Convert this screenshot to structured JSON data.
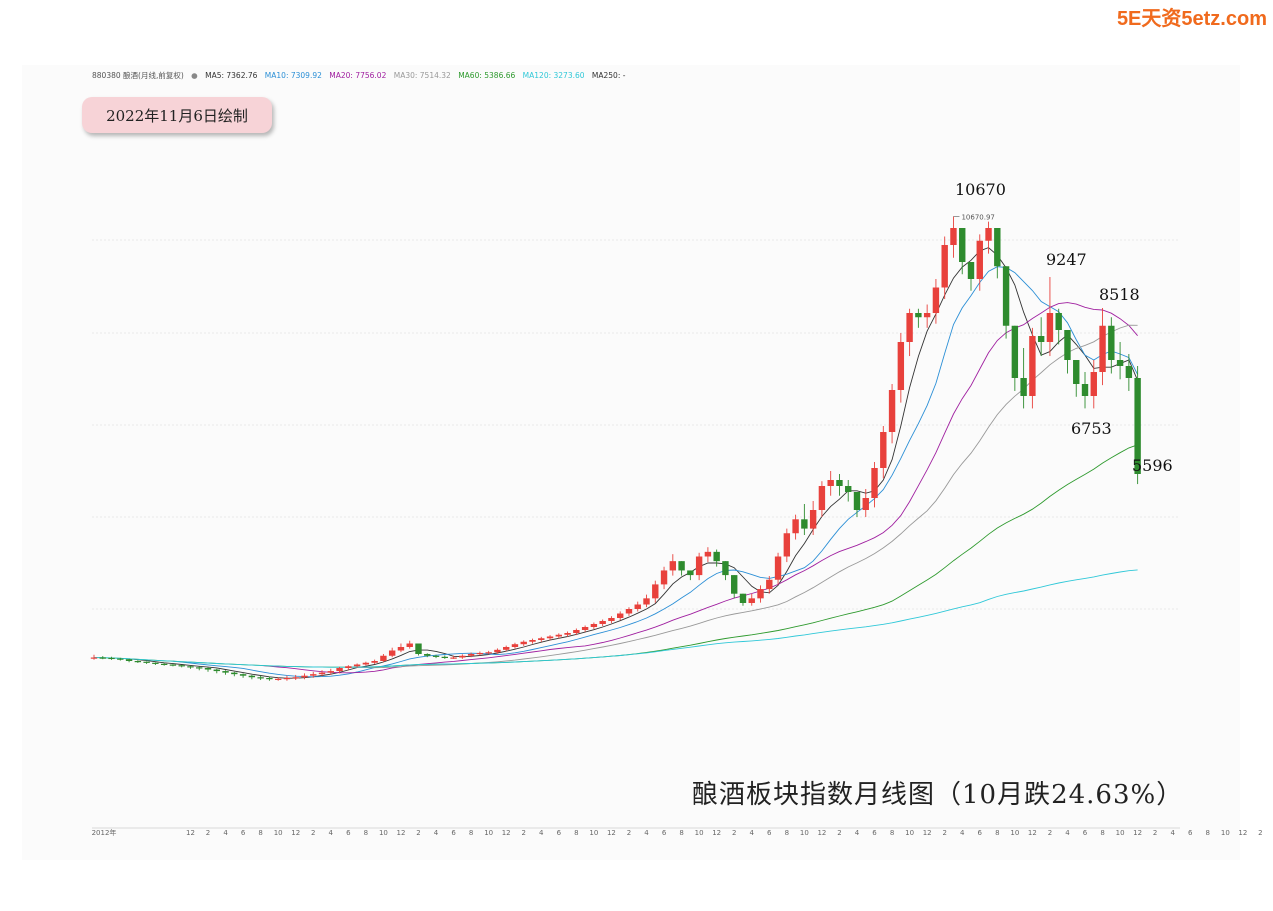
{
  "watermark": "5E天资5etz.com",
  "legend": {
    "symbol": "880380 酿酒(月线,前复权)",
    "items": [
      {
        "label": "MA5: 7362.76",
        "color": "#333333"
      },
      {
        "label": "MA10: 7309.92",
        "color": "#2b8fd6"
      },
      {
        "label": "MA20: 7756.02",
        "color": "#a020a0"
      },
      {
        "label": "MA30: 7514.32",
        "color": "#999999"
      },
      {
        "label": "MA60: 5386.66",
        "color": "#2e9a2e"
      },
      {
        "label": "MA120: 3273.60",
        "color": "#30c8d8"
      },
      {
        "label": "MA250: -",
        "color": "#333333"
      }
    ]
  },
  "date_badge": "2022年11月6日绘制",
  "chart_data": {
    "type": "candlestick",
    "title": "酿酒板块指数月线图（10月跌24.63%）",
    "frequency": "monthly",
    "start": "2012-01",
    "ylim": [
      0,
      12000
    ],
    "grid": true,
    "colors": {
      "up": "#e8413c",
      "down": "#2e8b2e"
    },
    "closes": [
      1300,
      1290,
      1270,
      1250,
      1200,
      1180,
      1150,
      1120,
      1100,
      1080,
      1050,
      1020,
      1000,
      980,
      960,
      940,
      920,
      900,
      880,
      870,
      860,
      860,
      870,
      880,
      900,
      920,
      940,
      960,
      1000,
      1050,
      1100,
      1150,
      1200,
      1350,
      1500,
      1600,
      1700,
      1400,
      1350,
      1320,
      1300,
      1300,
      1350,
      1400,
      1430,
      1450,
      1520,
      1600,
      1680,
      1750,
      1800,
      1850,
      1900,
      1950,
      2000,
      2100,
      2200,
      2300,
      2400,
      2500,
      2650,
      2800,
      2950,
      3100,
      3400,
      3700,
      3900,
      3700,
      3600,
      4000,
      4100,
      3900,
      3600,
      3200,
      3000,
      3100,
      3300,
      3500,
      4000,
      4500,
      4800,
      4600,
      5000,
      5400,
      5500,
      5400,
      5300,
      5000,
      5200,
      5700,
      6300,
      7000,
      7800,
      8400,
      8300,
      8400,
      9000,
      10000,
      10400,
      9600,
      9200,
      10100,
      10400,
      9500,
      8100,
      7200,
      6900,
      7900,
      7800,
      8400,
      8000,
      7500,
      7100,
      6900,
      7300,
      8100,
      7500,
      7400,
      7200,
      5600
    ],
    "highs": [
      1380,
      1340,
      1320,
      1290,
      1260,
      1220,
      1190,
      1160,
      1140,
      1110,
      1090,
      1060,
      1040,
      1010,
      990,
      970,
      950,
      930,
      910,
      900,
      890,
      880,
      900,
      910,
      930,
      950,
      970,
      990,
      1030,
      1080,
      1130,
      1180,
      1240,
      1400,
      1580,
      1700,
      1780,
      1560,
      1420,
      1380,
      1360,
      1350,
      1390,
      1440,
      1470,
      1490,
      1560,
      1640,
      1720,
      1790,
      1840,
      1890,
      1940,
      1990,
      2050,
      2150,
      2250,
      2350,
      2450,
      2560,
      2720,
      2860,
      3030,
      3180,
      3480,
      3780,
      4050,
      3850,
      3700,
      4080,
      4200,
      4150,
      3700,
      3350,
      3150,
      3200,
      3380,
      3580,
      4080,
      4600,
      4900,
      5100,
      5150,
      5480,
      5650,
      5600,
      5500,
      5250,
      5350,
      5800,
      6400,
      7100,
      7950,
      8500,
      8500,
      8600,
      9200,
      10200,
      10670,
      10000,
      9600,
      10250,
      10550,
      9900,
      8600,
      7500,
      7700,
      8050,
      8300,
      9247,
      8500,
      7900,
      7300,
      7300,
      7500,
      8518,
      8300,
      7800,
      7600,
      7400
    ],
    "annotations": [
      {
        "label": "10670",
        "sublabel": "10670.97",
        "value": 10670
      },
      {
        "label": "9247",
        "value": 9247
      },
      {
        "label": "8518",
        "value": 8518
      },
      {
        "label": "6753",
        "value": 6753
      },
      {
        "label": "5596",
        "value": 5596
      }
    ],
    "x_ticks": [
      "2012年",
      "12",
      "2",
      "4",
      "6",
      "8",
      "10",
      "12",
      "2",
      "4",
      "6",
      "8",
      "10",
      "12",
      "2",
      "4",
      "6",
      "8",
      "10",
      "12",
      "2",
      "4",
      "6",
      "8",
      "10",
      "12",
      "2",
      "4",
      "6",
      "8",
      "10",
      "12",
      "2",
      "4",
      "6",
      "8",
      "10",
      "12",
      "2",
      "4",
      "6",
      "8",
      "10",
      "12",
      "2",
      "4",
      "6",
      "8",
      "10",
      "12",
      "2",
      "4",
      "6",
      "8",
      "10",
      "12",
      "2",
      "4",
      "6",
      "8",
      "10",
      "12",
      "2",
      "4",
      "6",
      "8",
      "10"
    ]
  }
}
